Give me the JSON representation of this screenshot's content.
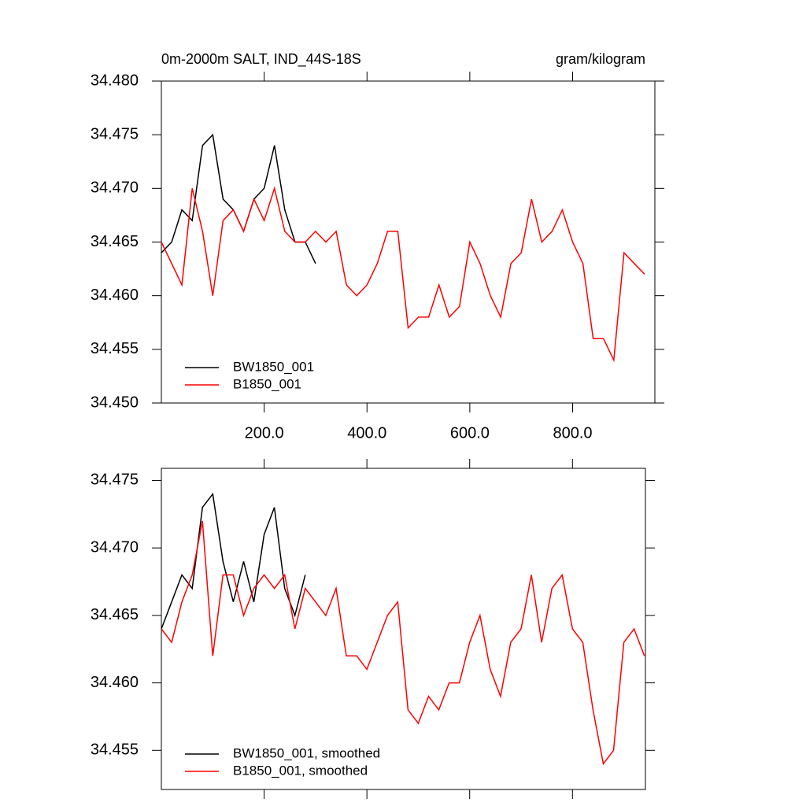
{
  "chart_data": [
    {
      "type": "line",
      "title": "0m-2000m SALT, IND_44S-18S",
      "subtitle": "gram/kilogram",
      "xlim": [
        0,
        960
      ],
      "ylim": [
        34.45,
        34.48
      ],
      "xticks": [
        {
          "value": 200,
          "label": "200.0"
        },
        {
          "value": 400,
          "label": "400.0"
        },
        {
          "value": 600,
          "label": "600.0"
        },
        {
          "value": 800,
          "label": "800.0"
        }
      ],
      "yticks": [
        {
          "value": 34.45,
          "label": "34.450"
        },
        {
          "value": 34.455,
          "label": "34.455"
        },
        {
          "value": 34.46,
          "label": "34.460"
        },
        {
          "value": 34.465,
          "label": "34.465"
        },
        {
          "value": 34.47,
          "label": "34.470"
        },
        {
          "value": 34.475,
          "label": "34.475"
        },
        {
          "value": 34.48,
          "label": "34.480"
        }
      ],
      "legend": "lower left",
      "series": [
        {
          "name": "BW1850_001",
          "color": "#000000",
          "x": [
            0,
            20,
            40,
            60,
            80,
            100,
            120,
            140,
            160,
            180,
            200,
            220,
            240,
            260,
            280,
            300
          ],
          "values": [
            34.464,
            34.465,
            34.468,
            34.467,
            34.474,
            34.475,
            34.469,
            34.468,
            34.466,
            34.469,
            34.47,
            34.474,
            34.468,
            34.465,
            34.465,
            34.463
          ]
        },
        {
          "name": "B1850_001",
          "color": "#ff0000",
          "x": [
            0,
            20,
            40,
            60,
            80,
            100,
            120,
            140,
            160,
            180,
            200,
            220,
            240,
            260,
            280,
            300,
            320,
            340,
            360,
            380,
            400,
            420,
            440,
            460,
            480,
            500,
            520,
            540,
            560,
            580,
            600,
            620,
            640,
            660,
            680,
            700,
            720,
            740,
            760,
            780,
            800,
            820,
            840,
            860,
            880,
            900,
            920,
            940
          ],
          "values": [
            34.465,
            34.463,
            34.461,
            34.47,
            34.466,
            34.46,
            34.467,
            34.468,
            34.466,
            34.469,
            34.467,
            34.47,
            34.466,
            34.465,
            34.465,
            34.466,
            34.465,
            34.466,
            34.461,
            34.46,
            34.461,
            34.463,
            34.466,
            34.466,
            34.457,
            34.458,
            34.458,
            34.461,
            34.458,
            34.459,
            34.465,
            34.463,
            34.46,
            34.458,
            34.463,
            34.464,
            34.469,
            34.465,
            34.466,
            34.468,
            34.465,
            34.463,
            34.456,
            34.456,
            34.454,
            34.464,
            34.463,
            34.462
          ]
        }
      ]
    },
    {
      "type": "line",
      "xlim": [
        0,
        942
      ],
      "ylim": [
        34.4521,
        34.4759
      ],
      "xticks": [
        200,
        400,
        600,
        800
      ],
      "xtick_labels": false,
      "yticks": [
        {
          "value": 34.455,
          "label": "34.455"
        },
        {
          "value": 34.46,
          "label": "34.460"
        },
        {
          "value": 34.465,
          "label": "34.465"
        },
        {
          "value": 34.47,
          "label": "34.470"
        },
        {
          "value": 34.475,
          "label": "34.475"
        }
      ],
      "legend": "lower left",
      "series": [
        {
          "name": "BW1850_001, smoothed",
          "color": "#000000",
          "x": [
            0,
            20,
            40,
            60,
            80,
            100,
            120,
            140,
            160,
            180,
            200,
            220,
            240,
            260,
            280
          ],
          "values": [
            34.464,
            34.466,
            34.468,
            34.467,
            34.473,
            34.474,
            34.469,
            34.466,
            34.469,
            34.466,
            34.471,
            34.473,
            34.467,
            34.465,
            34.468
          ]
        },
        {
          "name": "B1850_001, smoothed",
          "color": "#ff0000",
          "x": [
            0,
            20,
            40,
            60,
            80,
            100,
            120,
            140,
            160,
            180,
            200,
            220,
            240,
            260,
            280,
            300,
            320,
            340,
            360,
            380,
            400,
            420,
            440,
            460,
            480,
            500,
            520,
            540,
            560,
            580,
            600,
            620,
            640,
            660,
            680,
            700,
            720,
            740,
            760,
            780,
            800,
            820,
            840,
            860,
            880,
            900,
            920,
            940
          ],
          "values": [
            34.464,
            34.463,
            34.466,
            34.468,
            34.472,
            34.462,
            34.468,
            34.468,
            34.465,
            34.467,
            34.468,
            34.467,
            34.468,
            34.464,
            34.467,
            34.466,
            34.465,
            34.467,
            34.462,
            34.462,
            34.461,
            34.463,
            34.465,
            34.466,
            34.458,
            34.457,
            34.459,
            34.458,
            34.46,
            34.46,
            34.463,
            34.465,
            34.461,
            34.459,
            34.463,
            34.464,
            34.468,
            34.463,
            34.467,
            34.468,
            34.464,
            34.463,
            34.458,
            34.454,
            34.455,
            34.463,
            34.464,
            34.462
          ]
        }
      ]
    }
  ]
}
